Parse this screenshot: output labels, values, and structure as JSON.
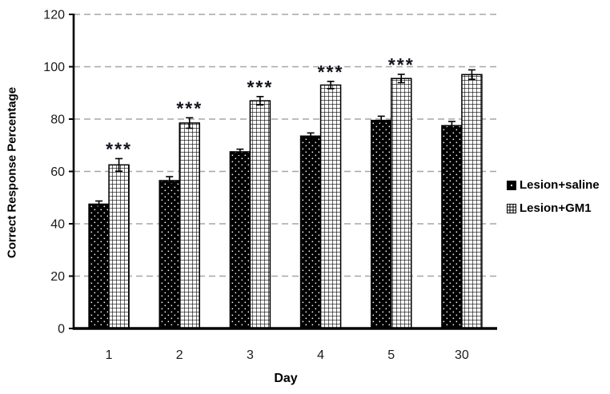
{
  "chart_data": {
    "type": "bar",
    "title": "",
    "xlabel": "Day",
    "ylabel": "Correct Response Percentage",
    "categories": [
      "1",
      "2",
      "3",
      "4",
      "5",
      "30"
    ],
    "series": [
      {
        "name": "Lesion+saline",
        "pattern": "dots",
        "values": [
          47.5,
          56.5,
          67.5,
          73.5,
          79.5,
          77.5
        ],
        "errors": [
          1.2,
          1.5,
          1.0,
          1.2,
          1.6,
          1.6
        ]
      },
      {
        "name": "Lesion+GM1",
        "pattern": "grid",
        "values": [
          62.5,
          78.5,
          87,
          93,
          95.5,
          97
        ],
        "errors": [
          2.4,
          2.0,
          1.6,
          1.4,
          1.6,
          1.8
        ]
      }
    ],
    "significance": [
      "***",
      "***",
      "***",
      "***",
      "***",
      ""
    ],
    "ylim": [
      0,
      120
    ],
    "ytick_step": 20,
    "grid": "dashed-horizontal",
    "legend_position": "right-middle"
  },
  "colors": {
    "bar_fill": "#000000",
    "gridline": "#a6a6a6",
    "axis": "#000000",
    "text": "#1a1a1a",
    "error_bar": "#000000"
  }
}
